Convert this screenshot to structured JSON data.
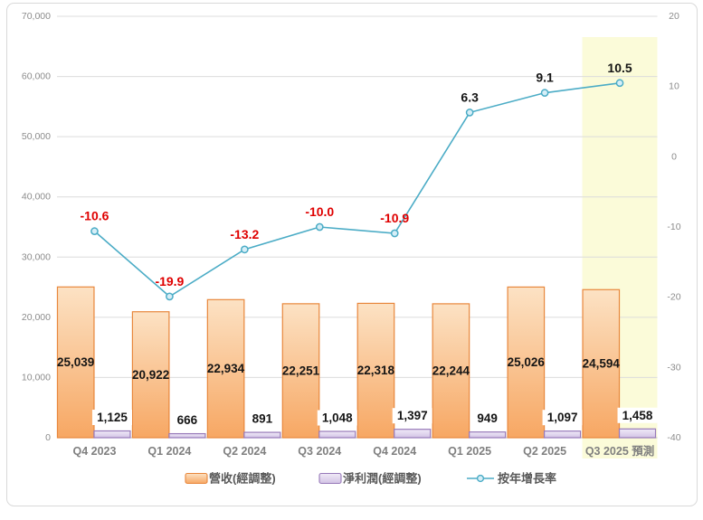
{
  "frame": {
    "background": "#FFFFFF",
    "border_color": "#D9D9D9"
  },
  "chart_data": {
    "type": "combo",
    "categories": [
      "Q4 2023",
      "Q1 2024",
      "Q2 2024",
      "Q3 2024",
      "Q4 2024",
      "Q1 2025",
      "Q2 2025",
      "Q3 2025 預測"
    ],
    "forecast_category_index": 7,
    "series": [
      {
        "name": "營收(經調整)",
        "type": "bar",
        "axis": "left",
        "values": [
          25039,
          20922,
          22934,
          22251,
          22318,
          22244,
          25026,
          24594
        ],
        "labels": [
          "25,039",
          "20,922",
          "22,934",
          "22,251",
          "22,318",
          "22,244",
          "25,026",
          "24,594"
        ]
      },
      {
        "name": "淨利潤(經調整)",
        "type": "bar",
        "axis": "left",
        "values": [
          1125,
          666,
          891,
          1048,
          1397,
          949,
          1097,
          1458
        ],
        "labels": [
          "1,125",
          "666",
          "891",
          "1,048",
          "1,397",
          "949",
          "1,097",
          "1,458"
        ]
      },
      {
        "name": "按年增長率",
        "type": "line",
        "axis": "right",
        "values": [
          -10.6,
          -19.9,
          -13.2,
          -10.0,
          -10.9,
          6.3,
          9.1,
          10.5
        ],
        "labels": [
          "-10.6",
          "-19.9",
          "-13.2",
          "-10.0",
          "-10.9",
          "6.3",
          "9.1",
          "10.5"
        ]
      }
    ],
    "left_axis": {
      "min": 0,
      "max": 70000,
      "step": 10000,
      "tick_labels": [
        "0",
        "10,000",
        "20,000",
        "30,000",
        "40,000",
        "50,000",
        "60,000",
        "70,000"
      ]
    },
    "right_axis": {
      "min": -40,
      "max": 20,
      "step": 10,
      "tick_labels": [
        "-40",
        "-30",
        "-20",
        "-10",
        "0",
        "10",
        "20"
      ]
    },
    "grid": true,
    "legend_position": "bottom"
  },
  "colors": {
    "revenue_fill_top": "#FCE2C4",
    "revenue_fill_bottom": "#F7A763",
    "revenue_border": "#E8873C",
    "profit_fill_top": "#F0EAF7",
    "profit_fill_bottom": "#D2C3E5",
    "profit_border": "#9779B9",
    "growth_line": "#4BACC6",
    "growth_marker_fill": "#D6EEF7",
    "label_positive": "#151515",
    "label_negative": "#DF0000",
    "axis_text": "#8C8C8C",
    "category_text": "#7F7F7F",
    "legend_text": "#595959",
    "gridline": "#DCDCDC",
    "axis_line": "#BFBFBF",
    "forecast_highlight": "#FBFBD9"
  }
}
